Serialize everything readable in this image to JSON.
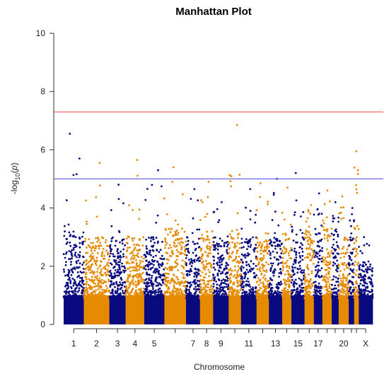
{
  "chart_data": {
    "type": "scatter",
    "title": "Manhattan Plot",
    "xlabel": "Chromosome",
    "ylabel_prefix": "-log",
    "ylabel_subscript": "10",
    "ylabel_open": "(",
    "ylabel_var": "p",
    "ylabel_close": ")",
    "ylim": [
      0,
      10
    ],
    "y_ticks": [
      "0",
      "2",
      "4",
      "6",
      "8",
      "10"
    ],
    "grid": false,
    "colors": {
      "odd": "#0a0a80",
      "even": "#e68a00"
    },
    "thresholds": [
      {
        "name": "genome-wide significance",
        "value": 7.3,
        "color": "#ff6666"
      },
      {
        "name": "suggestive",
        "value": 5.0,
        "color": "#6a6ae6"
      }
    ],
    "chromosomes": [
      {
        "id": "1",
        "label": "1",
        "top_peak": 6.55,
        "dense_max": 3.2
      },
      {
        "id": "2",
        "label": "2",
        "top_peak": 5.55,
        "dense_max": 3.0
      },
      {
        "id": "3",
        "label": "3",
        "top_peak": 4.8,
        "dense_max": 3.0
      },
      {
        "id": "4",
        "label": "4",
        "top_peak": 5.65,
        "dense_max": 3.0
      },
      {
        "id": "5",
        "label": "5",
        "top_peak": 5.3,
        "dense_max": 3.0
      },
      {
        "id": "6",
        "label": "",
        "top_peak": 5.4,
        "dense_max": 3.3
      },
      {
        "id": "7",
        "label": "7",
        "top_peak": 4.65,
        "dense_max": 3.0
      },
      {
        "id": "8",
        "label": "8",
        "top_peak": 4.9,
        "dense_max": 3.2
      },
      {
        "id": "9",
        "label": "9",
        "top_peak": 4.2,
        "dense_max": 3.0
      },
      {
        "id": "10",
        "label": "",
        "top_peak": 6.85,
        "dense_max": 3.3
      },
      {
        "id": "11",
        "label": "11",
        "top_peak": 4.65,
        "dense_max": 3.0
      },
      {
        "id": "12",
        "label": "",
        "top_peak": 4.85,
        "dense_max": 3.0
      },
      {
        "id": "13",
        "label": "13",
        "top_peak": 5.0,
        "dense_max": 3.0
      },
      {
        "id": "14",
        "label": "",
        "top_peak": 4.7,
        "dense_max": 3.0
      },
      {
        "id": "15",
        "label": "15",
        "top_peak": 5.2,
        "dense_max": 3.3
      },
      {
        "id": "16",
        "label": "",
        "top_peak": 4.1,
        "dense_max": 3.3
      },
      {
        "id": "17",
        "label": "17",
        "top_peak": 4.5,
        "dense_max": 3.4
      },
      {
        "id": "18",
        "label": "",
        "top_peak": 4.6,
        "dense_max": 3.3
      },
      {
        "id": "19",
        "label": "",
        "top_peak": 4.2,
        "dense_max": 3.3
      },
      {
        "id": "20",
        "label": "20",
        "top_peak": 4.4,
        "dense_max": 3.0
      },
      {
        "id": "21",
        "label": "",
        "top_peak": 4.0,
        "dense_max": 3.0
      },
      {
        "id": "22",
        "label": "",
        "top_peak": 5.95,
        "dense_max": 3.4
      },
      {
        "id": "X",
        "label": "X",
        "top_peak": 3.0,
        "dense_max": 2.2
      }
    ]
  }
}
